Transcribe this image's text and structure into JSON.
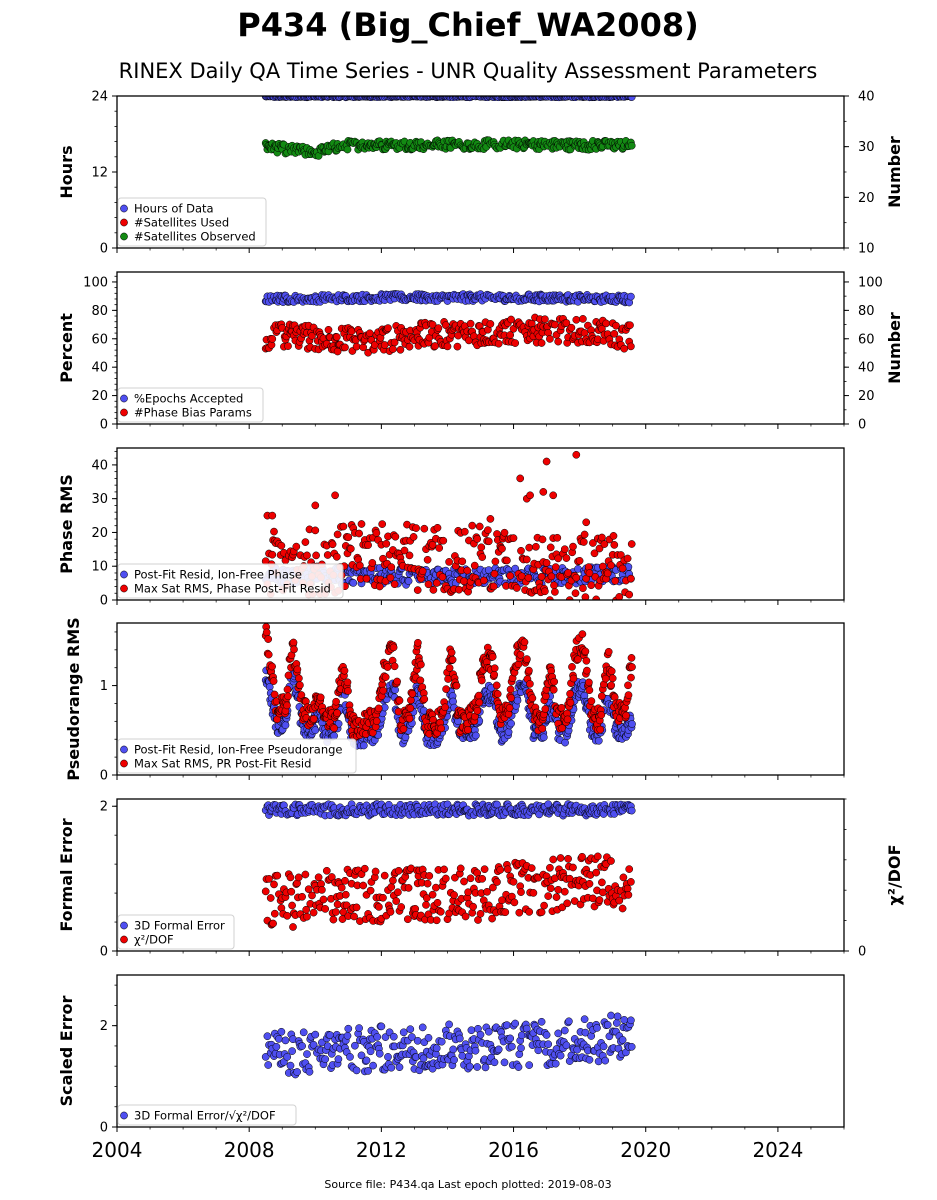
{
  "title": "P434 (Big_Chief_WA2008)",
  "subtitle": "RINEX Daily QA Time Series - UNR Quality Assessment Parameters",
  "footer": "Source file: P434.qa Last epoch plotted: 2019-08-03",
  "colors": {
    "blue": "#4f4ff0",
    "red": "#ee0000",
    "green": "#138a13"
  },
  "chart_data": [
    {
      "type": "scatter",
      "ylabel": "Hours",
      "y2label": "Number",
      "ylim": [
        0,
        24
      ],
      "y2lim": [
        10,
        40
      ],
      "yticks": [
        "0",
        "12",
        "24"
      ],
      "y2ticks": [
        "10",
        "20",
        "30",
        "40"
      ],
      "series": [
        {
          "name": "Hours of Data",
          "axis": "left",
          "color": "blue",
          "x": [
            2008.5,
            2019.58
          ],
          "y": [
            23.9,
            23.9
          ],
          "noise": 0.1,
          "step": 0.05
        },
        {
          "name": "#Satellites Used",
          "axis": "right",
          "color": "red",
          "x": [
            2009.3,
            2012.8
          ],
          "y": [
            30.0,
            30.0
          ],
          "noise": 0,
          "step": 3.5
        },
        {
          "name": "#Satellites Observed",
          "axis": "right",
          "color": "green",
          "x": [
            2008.5,
            2009.0,
            2010.0,
            2010.8,
            2012.0,
            2014.0,
            2016.0,
            2018.0,
            2019.58
          ],
          "y": [
            30.0,
            29.6,
            28.8,
            30.3,
            30.3,
            30.4,
            30.4,
            30.3,
            30.3
          ],
          "noise": 0.9,
          "step": 0.05
        }
      ]
    },
    {
      "type": "scatter",
      "ylabel": "Percent",
      "y2label": "Number",
      "ylim": [
        0,
        107
      ],
      "y2lim": [
        0,
        107
      ],
      "yticks": [
        "0",
        "20",
        "40",
        "60",
        "80",
        "100"
      ],
      "y2ticks": [
        "0",
        "20",
        "40",
        "60",
        "80",
        "100"
      ],
      "series": [
        {
          "name": "%Epochs Accepted",
          "axis": "left",
          "color": "blue",
          "x": [
            2008.5,
            2012.0,
            2016.0,
            2019.58
          ],
          "y": [
            88,
            89,
            89,
            88
          ],
          "noise": 2.5,
          "step": 0.05
        },
        {
          "name": "#Phase Bias Params",
          "axis": "left",
          "color": "red",
          "x": [
            2008.5,
            2010.0,
            2011.5,
            2013.0,
            2016.5,
            2018.0,
            2019.58
          ],
          "y": [
            62,
            61,
            58,
            62,
            66,
            66,
            61
          ],
          "noise": 9,
          "step": 0.05
        }
      ]
    },
    {
      "type": "scatter",
      "ylabel": "Phase RMS",
      "ylim": [
        0,
        45
      ],
      "yticks": [
        "0",
        "10",
        "20",
        "30",
        "40"
      ],
      "series": [
        {
          "name": "Post-Fit Resid, Ion-Free Phase",
          "axis": "left",
          "color": "blue",
          "x": [
            2008.5,
            2010.0,
            2012.0,
            2016.0,
            2019.58
          ],
          "y": [
            7.5,
            7,
            7,
            7,
            7.5
          ],
          "noise": 2.5,
          "step": 0.05
        },
        {
          "name": "Max Sat RMS, Phase Post-Fit Resid",
          "axis": "left",
          "color": "red",
          "x": [
            2008.5,
            2010.5,
            2012.0,
            2015.0,
            2017.0,
            2019.58
          ],
          "y": [
            10,
            12,
            13,
            12,
            9,
            10
          ],
          "noise": 10,
          "step": 0.05
        },
        {
          "name": "",
          "axis": "left",
          "color": "red",
          "x": [
            2008.55,
            2008.7,
            2010.0,
            2010.6,
            2015.3,
            2016.2,
            2016.4,
            2016.5,
            2016.9,
            2017.0,
            2017.2,
            2017.9,
            2018.2
          ],
          "y": [
            25,
            25,
            28,
            31,
            24,
            36,
            30,
            31,
            32,
            41,
            31,
            43,
            23
          ],
          "noise": 0,
          "step": 0
        }
      ]
    },
    {
      "type": "scatter",
      "ylabel": "Pseudorange RMS",
      "ylim": [
        0,
        1.7
      ],
      "yticks": [
        "0",
        "1"
      ],
      "series": [
        {
          "name": "Post-Fit Resid, Ion-Free Pseudorange",
          "axis": "left",
          "color": "blue",
          "x": [
            2008.5,
            2008.85,
            2009.1,
            2009.3,
            2009.6,
            2009.85,
            2010.1,
            2010.35,
            2010.6,
            2010.85,
            2011.1,
            2011.35,
            2011.6,
            2011.85,
            2012.1,
            2012.35,
            2012.6,
            2012.85,
            2013.1,
            2013.35,
            2013.6,
            2013.85,
            2014.1,
            2014.35,
            2014.6,
            2014.85,
            2015.1,
            2015.35,
            2015.6,
            2015.85,
            2016.1,
            2016.35,
            2016.6,
            2016.85,
            2017.1,
            2017.35,
            2017.6,
            2017.85,
            2018.1,
            2018.35,
            2018.6,
            2018.85,
            2019.1,
            2019.35,
            2019.58
          ],
          "y": [
            1.1,
            0.55,
            0.6,
            1.2,
            0.55,
            0.5,
            0.65,
            0.45,
            0.5,
            0.95,
            0.45,
            0.4,
            0.45,
            0.45,
            0.8,
            1.0,
            0.4,
            0.55,
            1.0,
            0.45,
            0.4,
            0.5,
            0.9,
            0.5,
            0.5,
            0.5,
            0.9,
            0.9,
            0.45,
            0.55,
            0.9,
            1.0,
            0.5,
            0.45,
            0.8,
            0.5,
            0.45,
            0.9,
            1.0,
            0.5,
            0.45,
            0.9,
            0.5,
            0.5,
            0.6
          ],
          "noise": 0.1,
          "step": 0.03
        },
        {
          "name": "Max Sat RMS, PR Post-Fit Resid",
          "axis": "left",
          "color": "red",
          "x": [
            2008.5,
            2008.85,
            2009.1,
            2009.3,
            2009.6,
            2009.85,
            2010.1,
            2010.35,
            2010.6,
            2010.85,
            2011.1,
            2011.35,
            2011.6,
            2011.85,
            2012.1,
            2012.35,
            2012.6,
            2012.85,
            2013.1,
            2013.35,
            2013.6,
            2013.85,
            2014.1,
            2014.35,
            2014.6,
            2014.85,
            2015.1,
            2015.35,
            2015.6,
            2015.85,
            2016.1,
            2016.35,
            2016.6,
            2016.85,
            2017.1,
            2017.35,
            2017.6,
            2017.85,
            2018.1,
            2018.35,
            2018.6,
            2018.85,
            2019.1,
            2019.35,
            2019.58
          ],
          "y": [
            1.55,
            0.7,
            0.8,
            1.5,
            0.75,
            0.65,
            0.9,
            0.6,
            0.65,
            1.25,
            0.55,
            0.5,
            0.6,
            0.6,
            1.2,
            1.4,
            0.55,
            0.7,
            1.4,
            0.6,
            0.55,
            0.65,
            1.35,
            0.6,
            0.6,
            0.7,
            1.3,
            1.3,
            0.6,
            0.7,
            1.35,
            1.4,
            0.65,
            0.6,
            1.2,
            0.65,
            0.6,
            1.35,
            1.5,
            0.7,
            0.6,
            1.35,
            0.7,
            0.65,
            1.3
          ],
          "noise": 0.13,
          "step": 0.03
        }
      ]
    },
    {
      "type": "scatter",
      "ylabel": "Formal Error",
      "y2label": "χ²/DOF",
      "ylim": [
        0,
        2.1
      ],
      "y2lim": [
        0,
        5
      ],
      "yticks": [
        "0",
        "2"
      ],
      "y2ticks": [
        "0"
      ],
      "series": [
        {
          "name": "3D Formal Error",
          "axis": "left",
          "color": "blue",
          "x": [
            2008.5,
            2019.58
          ],
          "y": [
            1.95,
            1.95
          ],
          "noise": 0.08,
          "step": 0.05
        },
        {
          "name": "χ²/DOF",
          "axis": "right",
          "color": "red",
          "x": [
            2008.5,
            2010.0,
            2012.0,
            2015.0,
            2017.5,
            2019.58
          ],
          "y": [
            1.6,
            1.75,
            1.85,
            1.9,
            2.2,
            2.3
          ],
          "noise": 0.9,
          "step": 0.05
        }
      ]
    },
    {
      "type": "scatter",
      "ylabel": "Scaled Error",
      "ylim": [
        0,
        3
      ],
      "yticks": [
        "0",
        "2"
      ],
      "series": [
        {
          "name": "3D Formal Error/√χ²/DOF",
          "axis": "left",
          "color": "blue",
          "x": [
            2008.5,
            2010.0,
            2012.0,
            2015.0,
            2017.5,
            2019.58
          ],
          "y": [
            1.5,
            1.45,
            1.55,
            1.6,
            1.65,
            1.8
          ],
          "noise": 0.45,
          "step": 0.05
        }
      ]
    }
  ],
  "x_axis": {
    "range": [
      2004,
      2026
    ],
    "ticks": [
      "2004",
      "2008",
      "2012",
      "2016",
      "2020",
      "2024"
    ]
  }
}
